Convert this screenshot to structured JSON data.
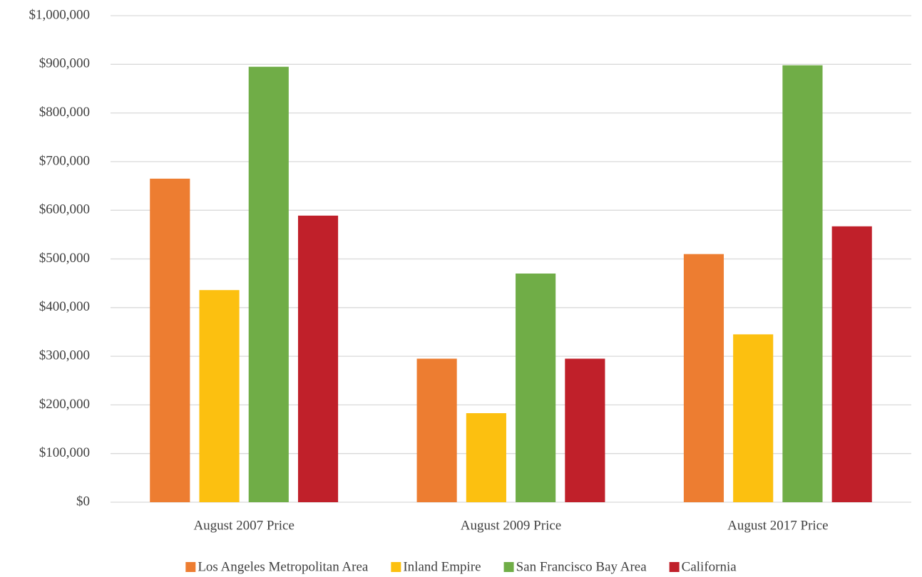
{
  "chart_data": {
    "type": "bar",
    "categories": [
      "August 2007 Price",
      "August 2009 Price",
      "August 2017 Price"
    ],
    "series": [
      {
        "name": "Los Angeles Metropolitan Area",
        "color": "#ED7D31",
        "values": [
          665000,
          295000,
          510000
        ]
      },
      {
        "name": "Inland Empire",
        "color": "#FCC010",
        "values": [
          436000,
          183000,
          345000
        ]
      },
      {
        "name": "San Francisco Bay Area",
        "color": "#70AD47",
        "values": [
          895000,
          470000,
          898000
        ]
      },
      {
        "name": "California",
        "color": "#C0202A",
        "values": [
          589000,
          295000,
          567000
        ]
      }
    ],
    "ylim": [
      0,
      1000000
    ],
    "yticks": [
      {
        "value": 0,
        "label": "$0"
      },
      {
        "value": 100000,
        "label": "$100,000"
      },
      {
        "value": 200000,
        "label": "$200,000"
      },
      {
        "value": 300000,
        "label": "$300,000"
      },
      {
        "value": 400000,
        "label": "$400,000"
      },
      {
        "value": 500000,
        "label": "$500,000"
      },
      {
        "value": 600000,
        "label": "$600,000"
      },
      {
        "value": 700000,
        "label": "$700,000"
      },
      {
        "value": 800000,
        "label": "$800,000"
      },
      {
        "value": 900000,
        "label": "$900,000"
      },
      {
        "value": 1000000,
        "label": "$1,000,000"
      }
    ],
    "grid": true,
    "legend": "bottom"
  }
}
